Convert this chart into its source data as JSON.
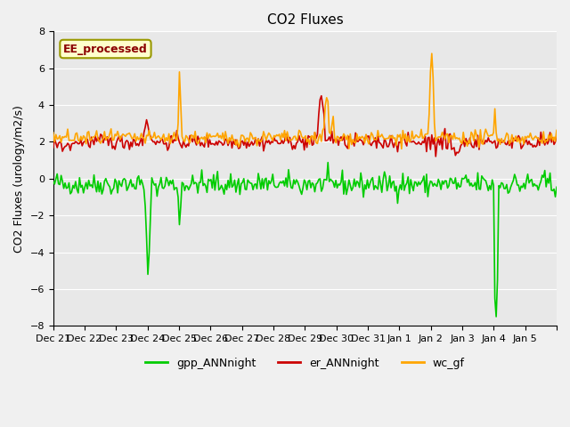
{
  "title": "CO2 Fluxes",
  "ylabel": "CO2 Fluxes (urology/m2/s)",
  "ylim": [
    -8,
    8
  ],
  "yticks": [
    -8,
    -6,
    -4,
    -2,
    0,
    2,
    4,
    6,
    8
  ],
  "bg_color": "#e8e8e8",
  "fig_color": "#f0f0f0",
  "legend_label": "EE_processed",
  "legend_box_color": "#ffffcc",
  "legend_box_edge": "#999900",
  "series": {
    "gpp_ANNnight": {
      "color": "#00cc00",
      "lw": 1.2
    },
    "er_ANNnight": {
      "color": "#cc0000",
      "lw": 1.2
    },
    "wc_gf": {
      "color": "#ffa500",
      "lw": 1.2
    }
  },
  "xtick_labels": [
    "Dec 21",
    "Dec 22",
    "Dec 23",
    "Dec 24",
    "Dec 25",
    "Dec 26",
    "Dec 27",
    "Dec 28",
    "Dec 29",
    "Dec 30",
    "Dec 31",
    "Jan 1",
    "Jan 2",
    "Jan 3",
    "Jan 4",
    "Jan 5"
  ],
  "n_points_per_day": 24
}
